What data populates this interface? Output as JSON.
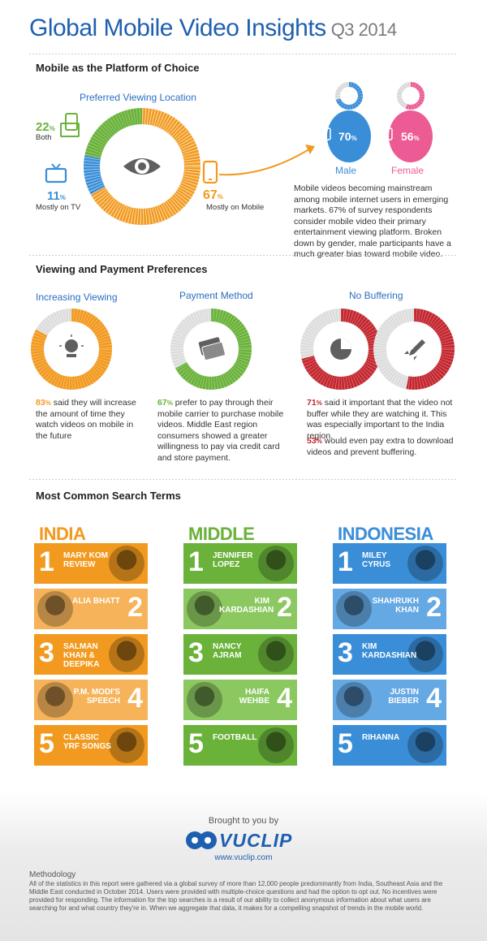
{
  "header": {
    "title": "Global Mobile Video Insights",
    "quarter": "Q3 2014"
  },
  "section1": {
    "title": "Mobile as the Platform of Choice",
    "chart_title": "Preferred Viewing Location",
    "both_pct": "22",
    "both_label": "Both",
    "tv_pct": "11",
    "tv_label": "Mostly on TV",
    "mobile_pct": "67",
    "mobile_label": "Mostly on Mobile",
    "male_pct": "70",
    "male_label": "Male",
    "female_pct": "56",
    "female_label": "Female",
    "pct_sign": "%",
    "description": "Mobile videos becoming mainstream among mobile internet users in emerging markets. 67% of survey respondents consider mobile video their primary entertainment viewing platform. Broken down by gender, male participants have a much greater bias toward mobile video.",
    "colors": {
      "mobile": "#f29a1f",
      "both": "#6ab23a",
      "tv": "#3a8ed8",
      "male": "#3a8ed8",
      "female": "#ec5b93"
    }
  },
  "section2": {
    "title": "Viewing and Payment Preferences",
    "viewing": {
      "title": "Increasing Viewing",
      "pct": "83",
      "text": "said they will increase the amount of time they watch videos on mobile in the future"
    },
    "payment": {
      "title": "Payment Method",
      "pct": "67",
      "text": "prefer to pay through their mobile carrier to purchase mobile videos. Middle East region consumers showed a greater willingness to pay via credit card and store payment."
    },
    "buffering": {
      "title": "No Buffering",
      "pct1": "71",
      "text1": "said it important that the video not buffer while they are watching it. This was especially important to the India region.",
      "pct2": "53",
      "text2": "would even pay extra to download videos and prevent buffering."
    }
  },
  "section3": {
    "title": "Most Common Search Terms",
    "columns": [
      {
        "region": "INDIA",
        "items": [
          "MARY KOM REVIEW",
          "ALIA BHATT",
          "SALMAN KHAN & DEEPIKA",
          "P.M. MODI'S SPEECH",
          "CLASSIC YRF SONGS"
        ]
      },
      {
        "region": "MIDDLE EAST",
        "items": [
          "JENNIFER LOPEZ",
          "KIM KARDASHIAN",
          "NANCY AJRAM",
          "HAIFA WEHBE",
          "FOOTBALL"
        ]
      },
      {
        "region": "INDONESIA",
        "items": [
          "MILEY CYRUS",
          "SHAHRUKH KHAN",
          "KIM KARDASHIAN",
          "JUSTIN BIEBER",
          "RIHANNA"
        ]
      }
    ],
    "numbers": [
      "1",
      "2",
      "3",
      "4",
      "5"
    ]
  },
  "footer": {
    "brought": "Brought to you by",
    "brand": "VUCLIP",
    "url": "www.vuclip.com",
    "methodology_title": "Methodology",
    "methodology_text": "All of the statistics in this report were gathered via a global survey of more than 12,000 people predominantly from India, Southeast Asia and the Middle East conducted in October 2014. Users were provided with multiple-choice questions and had the option to opt out. No incentives were provided for responding. The information for the top searches is a result of our ability to collect anonymous information about what users are searching for and what country they're in. When we aggregate that data, it makes for a compelling snapshot of trends in the mobile world."
  }
}
